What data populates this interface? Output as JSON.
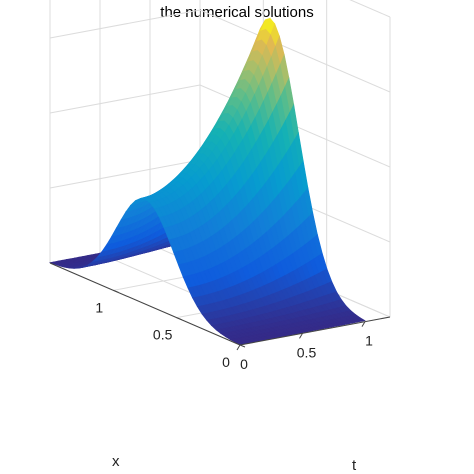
{
  "chart_data": {
    "type": "surface",
    "title": "the numerical solutions",
    "xlabel": "x",
    "tlabel": "t",
    "x_ticks": [
      "0",
      "0.5",
      "1"
    ],
    "t_ticks": [
      "0",
      "0.5",
      "1"
    ],
    "x_range": [
      0,
      1.5
    ],
    "t_range": [
      0,
      1.2
    ],
    "z_range": [
      0,
      1.2
    ],
    "grid": true,
    "colormap": "parula",
    "surface_samples": {
      "t": [
        0,
        0.5,
        1
      ],
      "x": [
        0,
        0.25,
        0.5,
        0.75,
        1,
        1.25,
        1.5
      ],
      "z_at_t0": [
        0.0,
        0.08,
        0.3,
        0.42,
        0.3,
        0.08,
        0.0
      ],
      "z_at_t0_5": [
        0.0,
        0.12,
        0.45,
        0.6,
        0.45,
        0.12,
        0.0
      ],
      "z_at_t1": [
        0.0,
        0.2,
        0.72,
        1.0,
        0.72,
        0.2,
        0.0
      ]
    }
  }
}
